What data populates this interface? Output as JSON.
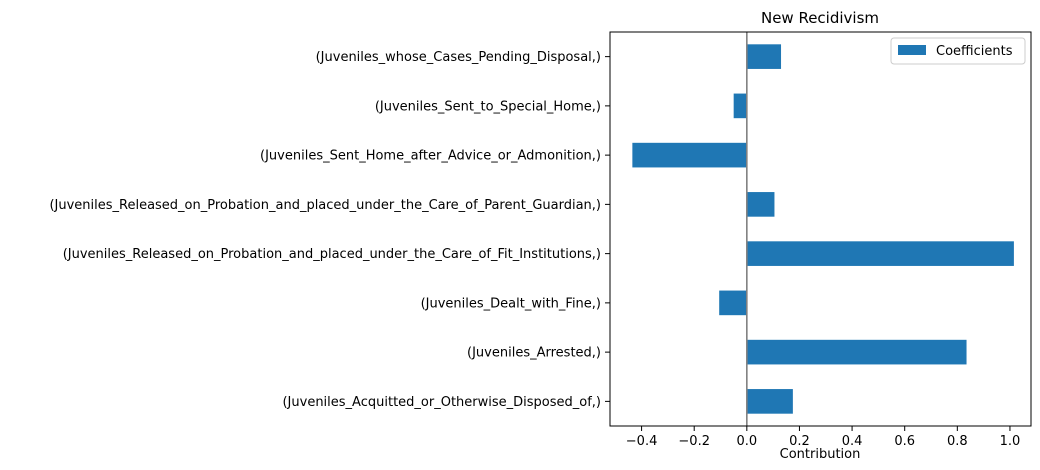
{
  "chart_data": {
    "type": "bar",
    "orientation": "horizontal",
    "title": "New Recidivism",
    "xlabel": "Contribution",
    "ylabel": "",
    "xlim": [
      -0.52,
      1.08
    ],
    "xticks": [
      -0.4,
      -0.2,
      0.0,
      0.2,
      0.4,
      0.6,
      0.8,
      1.0
    ],
    "xtick_labels": [
      "−0.4",
      "−0.2",
      "0.0",
      "0.2",
      "0.4",
      "0.6",
      "0.8",
      "1.0"
    ],
    "grid": false,
    "legend_position": "top-right",
    "categories": [
      "(Juveniles_Acquitted_or_Otherwise_Disposed_of,)",
      "(Juveniles_Arrested,)",
      "(Juveniles_Dealt_with_Fine,)",
      "(Juveniles_Released_on_Probation_and_placed_under_the_Care_of_Fit_Institutions,)",
      "(Juveniles_Released_on_Probation_and_placed_under_the_Care_of_Parent_Guardian,)",
      "(Juveniles_Sent_Home_after_Advice_or_Admonition,)",
      "(Juveniles_Sent_to_Special_Home,)",
      "(Juveniles_whose_Cases_Pending_Disposal,)"
    ],
    "series": [
      {
        "name": "Coefficients",
        "color": "#1f77b4",
        "values": [
          0.175,
          0.835,
          -0.105,
          1.015,
          0.105,
          -0.435,
          -0.05,
          0.13
        ]
      }
    ],
    "zero_line_color": "#808080"
  }
}
